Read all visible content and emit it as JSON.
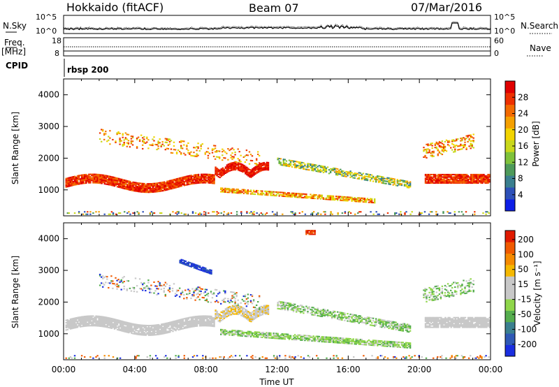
{
  "header": {
    "radar": "Hokkaido (fitACF)",
    "beam": "Beam 07",
    "date": "07/Mar/2016"
  },
  "noise_panel": {
    "left_label": "N.Sky",
    "right_label": "N.Search",
    "left_ticks": [
      "10^5",
      "10^0"
    ],
    "right_ticks": [
      "10^5",
      "10^0"
    ]
  },
  "freq_panel": {
    "left_label": "Freq.",
    "left_unit": "[MHz]",
    "left_ticks": [
      "18",
      "8"
    ],
    "right_label": "Nave",
    "right_ticks": [
      "60",
      "0"
    ]
  },
  "cpid": {
    "label": "CPID",
    "value": "rbsp 200"
  },
  "chart_data": [
    {
      "type": "heatmap",
      "name": "power",
      "ylabel": "Slant Range [km]",
      "y_ticks": [
        1000,
        2000,
        3000,
        4000
      ],
      "ylim": [
        180,
        4500
      ],
      "x_ticks": [
        "00:00",
        "04:00",
        "08:00",
        "12:00",
        "16:00",
        "20:00",
        "00:00"
      ],
      "xlim_hours": [
        0,
        24
      ],
      "colorbar": {
        "label": "Power [dB]",
        "ticks": [
          "4",
          "8",
          "12",
          "16",
          "20",
          "24",
          "28"
        ],
        "colors": [
          "#0d1ee6",
          "#2d50b8",
          "#3a7f8f",
          "#4e9a5a",
          "#7fc23a",
          "#c9d81b",
          "#f2d400",
          "#f5a000",
          "#f36a00",
          "#ee3000",
          "#e00000"
        ]
      }
    },
    {
      "type": "heatmap",
      "name": "velocity",
      "ylabel": "Slant Range [km]",
      "y_ticks": [
        1000,
        2000,
        3000,
        4000
      ],
      "ylim": [
        180,
        4500
      ],
      "x_ticks": [
        "00:00",
        "04:00",
        "08:00",
        "12:00",
        "16:00",
        "20:00",
        "00:00"
      ],
      "xlabel": "Time UT",
      "xlim_hours": [
        0,
        24
      ],
      "colorbar": {
        "label": "Velocity [m s⁻¹]",
        "ticks": [
          "200",
          "100",
          "50",
          "15",
          "-15",
          "-50",
          "-100",
          "-200"
        ],
        "colors": [
          "#1a2ee0",
          "#2f59b5",
          "#3a7f8f",
          "#55ad4e",
          "#8fd64a",
          "#c8c8c8",
          "#c8c8c8",
          "#f5b800",
          "#f58a00",
          "#f05a00",
          "#e01a00"
        ]
      }
    }
  ]
}
